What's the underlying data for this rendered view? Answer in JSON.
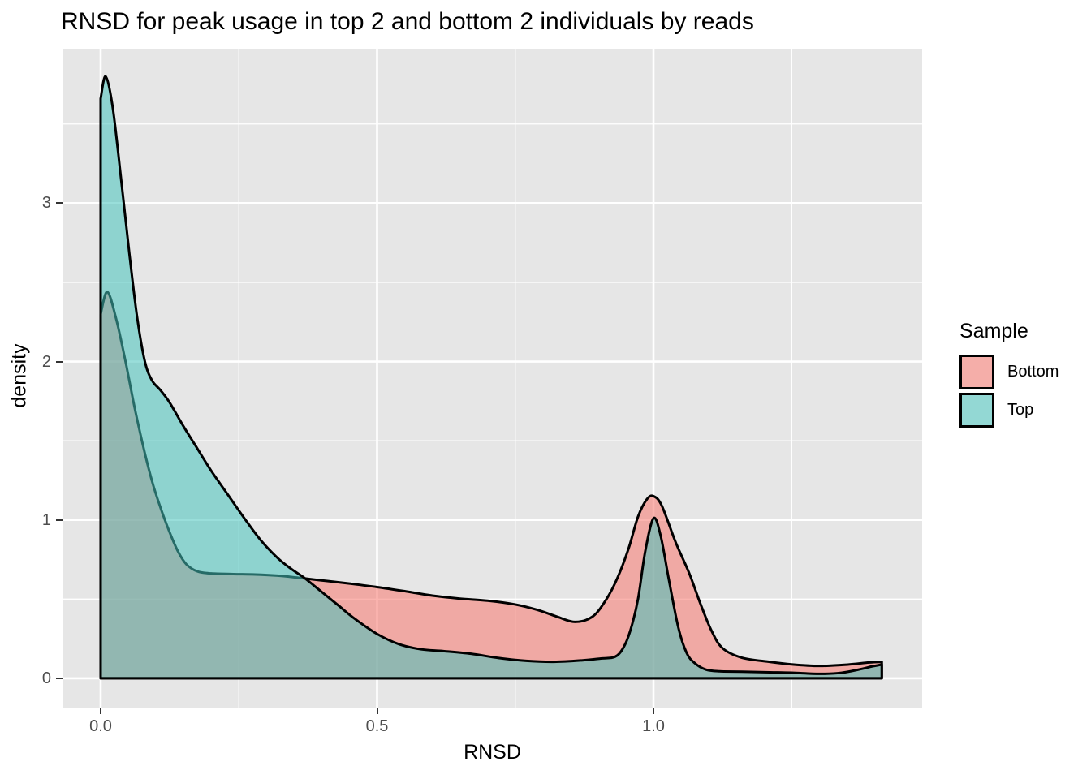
{
  "title": "RNSD for peak usage in top 2 and bottom 2 individuals by reads",
  "axes": {
    "x": {
      "label": "RNSD",
      "ticks": [
        {
          "value": 0.0,
          "label": "0.0"
        },
        {
          "value": 0.5,
          "label": "0.5"
        },
        {
          "value": 1.0,
          "label": "1.0"
        }
      ]
    },
    "y": {
      "label": "density",
      "ticks": [
        {
          "value": 0,
          "label": "0"
        },
        {
          "value": 1,
          "label": "1"
        },
        {
          "value": 2,
          "label": "2"
        },
        {
          "value": 3,
          "label": "3"
        }
      ]
    }
  },
  "legend": {
    "title": "Sample",
    "entries": [
      {
        "label": "Bottom",
        "fill": "#F8766D"
      },
      {
        "label": "Top",
        "fill": "#45C2BB"
      }
    ]
  },
  "style": {
    "panel_bg": "#E6E6E6",
    "grid_color": "#FFFFFF",
    "tick_label_color": "#4D4D4D",
    "outline_color": "#000000",
    "legend_key_bg": "#F2F2F2",
    "fill_alpha": 0.55,
    "curve_stroke_width": 3
  },
  "chart_data": {
    "type": "area",
    "subtype": "overlapping-density",
    "title": "RNSD for peak usage in top 2 and bottom 2 individuals by reads",
    "xlabel": "RNSD",
    "ylabel": "density",
    "xlim": [
      -0.069,
      1.486
    ],
    "ylim": [
      -0.185,
      3.97
    ],
    "x_major": [
      0.0,
      0.5,
      1.0
    ],
    "x_minor": [
      0.25,
      0.75,
      1.25
    ],
    "y_major": [
      0,
      1,
      2,
      3
    ],
    "y_minor": [
      0.5,
      1.5,
      2.5,
      3.5
    ],
    "grid": true,
    "legend_position": "right",
    "series": [
      {
        "name": "Bottom",
        "fill": "#F8766D",
        "alpha": 0.55,
        "stroke": "#000000",
        "points": [
          [
            0.0,
            2.3
          ],
          [
            0.012,
            2.44
          ],
          [
            0.028,
            2.27
          ],
          [
            0.045,
            2.0
          ],
          [
            0.062,
            1.7
          ],
          [
            0.08,
            1.42
          ],
          [
            0.095,
            1.22
          ],
          [
            0.11,
            1.06
          ],
          [
            0.125,
            0.92
          ],
          [
            0.14,
            0.8
          ],
          [
            0.155,
            0.72
          ],
          [
            0.175,
            0.675
          ],
          [
            0.2,
            0.662
          ],
          [
            0.24,
            0.658
          ],
          [
            0.28,
            0.655
          ],
          [
            0.32,
            0.648
          ],
          [
            0.345,
            0.64
          ],
          [
            0.37,
            0.63
          ],
          [
            0.41,
            0.614
          ],
          [
            0.45,
            0.598
          ],
          [
            0.5,
            0.576
          ],
          [
            0.55,
            0.55
          ],
          [
            0.6,
            0.522
          ],
          [
            0.65,
            0.503
          ],
          [
            0.7,
            0.49
          ],
          [
            0.75,
            0.466
          ],
          [
            0.79,
            0.432
          ],
          [
            0.825,
            0.39
          ],
          [
            0.858,
            0.356
          ],
          [
            0.89,
            0.39
          ],
          [
            0.915,
            0.5
          ],
          [
            0.935,
            0.635
          ],
          [
            0.955,
            0.82
          ],
          [
            0.972,
            1.02
          ],
          [
            0.988,
            1.13
          ],
          [
            1.0,
            1.15
          ],
          [
            1.015,
            1.09
          ],
          [
            1.04,
            0.86
          ],
          [
            1.065,
            0.66
          ],
          [
            1.085,
            0.47
          ],
          [
            1.105,
            0.3
          ],
          [
            1.125,
            0.19
          ],
          [
            1.16,
            0.13
          ],
          [
            1.21,
            0.104
          ],
          [
            1.25,
            0.088
          ],
          [
            1.3,
            0.078
          ],
          [
            1.35,
            0.086
          ],
          [
            1.39,
            0.1
          ],
          [
            1.413,
            0.104
          ]
        ]
      },
      {
        "name": "Top",
        "fill": "#45C2BB",
        "alpha": 0.55,
        "stroke": "#000000",
        "points": [
          [
            0.0,
            3.66
          ],
          [
            0.009,
            3.8
          ],
          [
            0.022,
            3.6
          ],
          [
            0.038,
            3.12
          ],
          [
            0.052,
            2.68
          ],
          [
            0.066,
            2.28
          ],
          [
            0.08,
            2.0
          ],
          [
            0.093,
            1.88
          ],
          [
            0.108,
            1.82
          ],
          [
            0.125,
            1.74
          ],
          [
            0.15,
            1.59
          ],
          [
            0.175,
            1.45
          ],
          [
            0.2,
            1.31
          ],
          [
            0.23,
            1.16
          ],
          [
            0.26,
            1.01
          ],
          [
            0.29,
            0.87
          ],
          [
            0.32,
            0.76
          ],
          [
            0.345,
            0.69
          ],
          [
            0.37,
            0.63
          ],
          [
            0.4,
            0.545
          ],
          [
            0.43,
            0.46
          ],
          [
            0.46,
            0.375
          ],
          [
            0.5,
            0.28
          ],
          [
            0.54,
            0.215
          ],
          [
            0.58,
            0.183
          ],
          [
            0.62,
            0.172
          ],
          [
            0.67,
            0.155
          ],
          [
            0.72,
            0.128
          ],
          [
            0.77,
            0.11
          ],
          [
            0.82,
            0.104
          ],
          [
            0.87,
            0.113
          ],
          [
            0.905,
            0.125
          ],
          [
            0.93,
            0.135
          ],
          [
            0.945,
            0.19
          ],
          [
            0.958,
            0.3
          ],
          [
            0.972,
            0.5
          ],
          [
            0.985,
            0.8
          ],
          [
            1.0,
            1.01
          ],
          [
            1.013,
            0.9
          ],
          [
            1.028,
            0.62
          ],
          [
            1.045,
            0.32
          ],
          [
            1.06,
            0.16
          ],
          [
            1.075,
            0.095
          ],
          [
            1.095,
            0.055
          ],
          [
            1.12,
            0.044
          ],
          [
            1.16,
            0.042
          ],
          [
            1.21,
            0.038
          ],
          [
            1.25,
            0.035
          ],
          [
            1.3,
            0.028
          ],
          [
            1.34,
            0.035
          ],
          [
            1.375,
            0.058
          ],
          [
            1.395,
            0.075
          ],
          [
            1.413,
            0.087
          ]
        ]
      }
    ]
  }
}
